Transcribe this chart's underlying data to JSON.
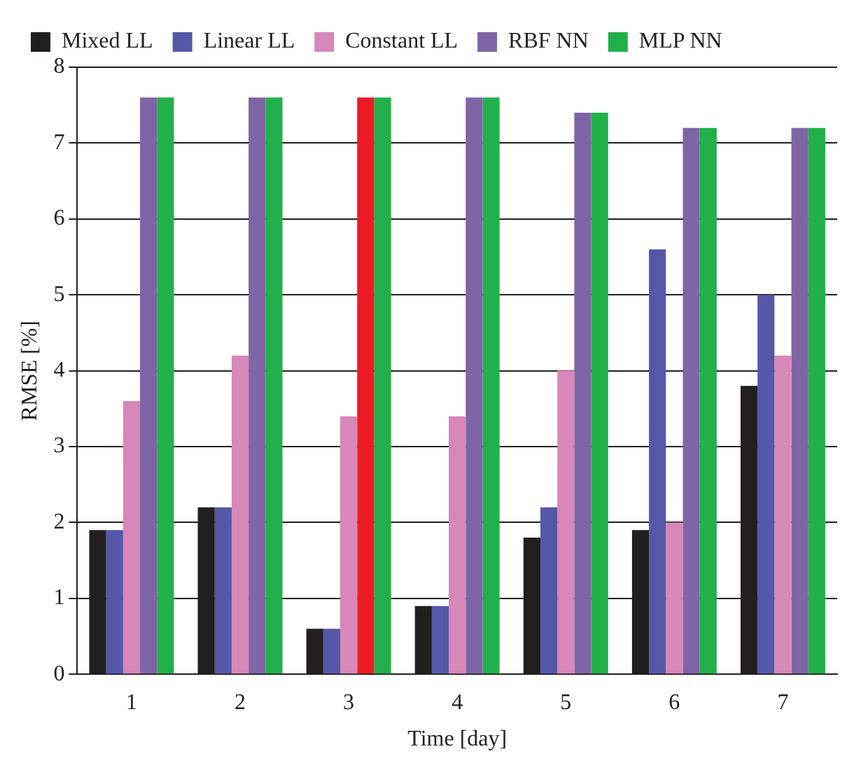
{
  "chart_data": {
    "type": "bar",
    "xlabel": "Time [day]",
    "ylabel": "RMSE [%]",
    "categories": [
      "1",
      "2",
      "3",
      "4",
      "5",
      "6",
      "7"
    ],
    "series": [
      {
        "name": "Mixed LL",
        "color": "#231f20",
        "values": [
          1.9,
          2.2,
          0.6,
          0.9,
          1.8,
          1.9,
          3.8
        ]
      },
      {
        "name": "Linear LL",
        "color": "#5558a8",
        "values": [
          1.9,
          2.2,
          0.6,
          0.9,
          2.2,
          5.6,
          5.0
        ]
      },
      {
        "name": "Constant LL",
        "color": "#d787b8",
        "values": [
          3.6,
          4.2,
          3.4,
          3.4,
          4.0,
          2.0,
          4.2
        ]
      },
      {
        "name": "RBF NN",
        "color": "#7f65a6",
        "colors": [
          "#7f65a6",
          "#7f65a6",
          "#ed1c24",
          "#7f65a6",
          "#7f65a6",
          "#7f65a6",
          "#7f65a6"
        ],
        "values": [
          7.6,
          7.6,
          7.6,
          7.6,
          7.4,
          7.2,
          7.2
        ]
      },
      {
        "name": "MLP NN",
        "color": "#22b04b",
        "values": [
          7.6,
          7.6,
          7.6,
          7.6,
          7.4,
          7.2,
          7.2
        ]
      }
    ],
    "ylim": [
      0,
      8
    ],
    "yticks": [
      0,
      1,
      2,
      3,
      4,
      5,
      6,
      7,
      8
    ],
    "grid": "y",
    "legend": "top left"
  }
}
